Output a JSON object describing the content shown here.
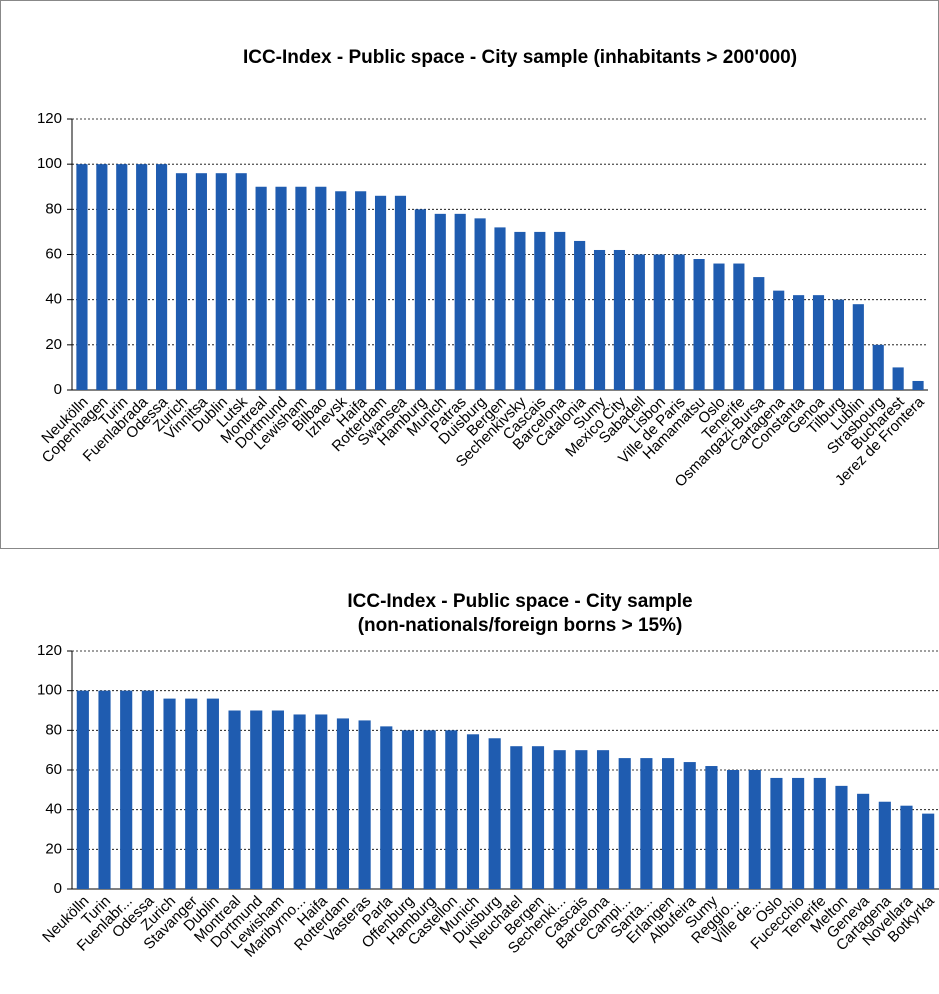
{
  "chart_data": [
    {
      "type": "bar",
      "title": "ICC-Index - Public space - City sample (inhabitants > 200'000)",
      "categories": [
        "Neukölln",
        "Copenhagen",
        "Turin",
        "Fuenlabrada",
        "Odessa",
        "Zurich",
        "Vinnitsa",
        "Dublin",
        "Lutsk",
        "Montreal",
        "Dortmund",
        "Lewisham",
        "Bilbao",
        "Izhevsk",
        "Haifa",
        "Rotterdam",
        "Swansea",
        "Hamburg",
        "Munich",
        "Patras",
        "Duisburg",
        "Bergen",
        "Sechenkivsky",
        "Cascais",
        "Barcelona",
        "Catalonia",
        "Sumy",
        "Mexico City",
        "Sabadell",
        "Lisbon",
        "Ville de Paris",
        "Hamamatsu",
        "Oslo",
        "Tenerife",
        "Osmangazi-Bursa",
        "Cartagena",
        "Constanta",
        "Genoa",
        "Tilburg",
        "Lublin",
        "Strasbourg",
        "Bucharest",
        "Jerez de Frontera"
      ],
      "values": [
        100,
        100,
        100,
        100,
        100,
        96,
        96,
        96,
        96,
        90,
        90,
        90,
        90,
        88,
        88,
        86,
        86,
        80,
        78,
        78,
        76,
        72,
        70,
        70,
        70,
        66,
        62,
        62,
        60,
        60,
        60,
        58,
        56,
        56,
        50,
        44,
        42,
        42,
        40,
        38,
        20,
        10,
        4
      ],
      "color": "#1f5cb0",
      "ylim": [
        0,
        120
      ],
      "yticks": [
        0,
        20,
        40,
        60,
        80,
        100,
        120
      ],
      "grid": true
    },
    {
      "type": "bar",
      "title": "ICC-Index - Public space - City sample\n(non-nationals/foreign borns > 15%)",
      "categories": [
        "Neukölln",
        "Turin",
        "Fuenlabr...",
        "Odessa",
        "Zurich",
        "Stavanger",
        "Dublin",
        "Montreal",
        "Dortmund",
        "Lewisham",
        "Maribyrno...",
        "Haifa",
        "Rotterdam",
        "Vasteras",
        "Parla",
        "Offenburg",
        "Hamburg",
        "Castellon",
        "Munich",
        "Duisburg",
        "Neuchatel",
        "Bergen",
        "Sechenki...",
        "Cascais",
        "Barcelona",
        "Campi...",
        "Santa...",
        "Erlangen",
        "Albufeira",
        "Sumy",
        "Reggio...",
        "Ville de...",
        "Oslo",
        "Fucecchio",
        "Tenerife",
        "Melton",
        "Geneva",
        "Cartagena",
        "Novellara",
        "Botkyrka"
      ],
      "values": [
        100,
        100,
        100,
        100,
        96,
        96,
        96,
        90,
        90,
        90,
        88,
        88,
        86,
        85,
        82,
        80,
        80,
        80,
        78,
        76,
        72,
        72,
        70,
        70,
        70,
        66,
        66,
        66,
        64,
        62,
        60,
        60,
        56,
        56,
        56,
        52,
        48,
        44,
        42,
        38
      ],
      "color": "#1f5cb0",
      "ylim": [
        0,
        120
      ],
      "yticks": [
        0,
        20,
        40,
        60,
        80,
        100,
        120
      ],
      "grid": true
    }
  ]
}
